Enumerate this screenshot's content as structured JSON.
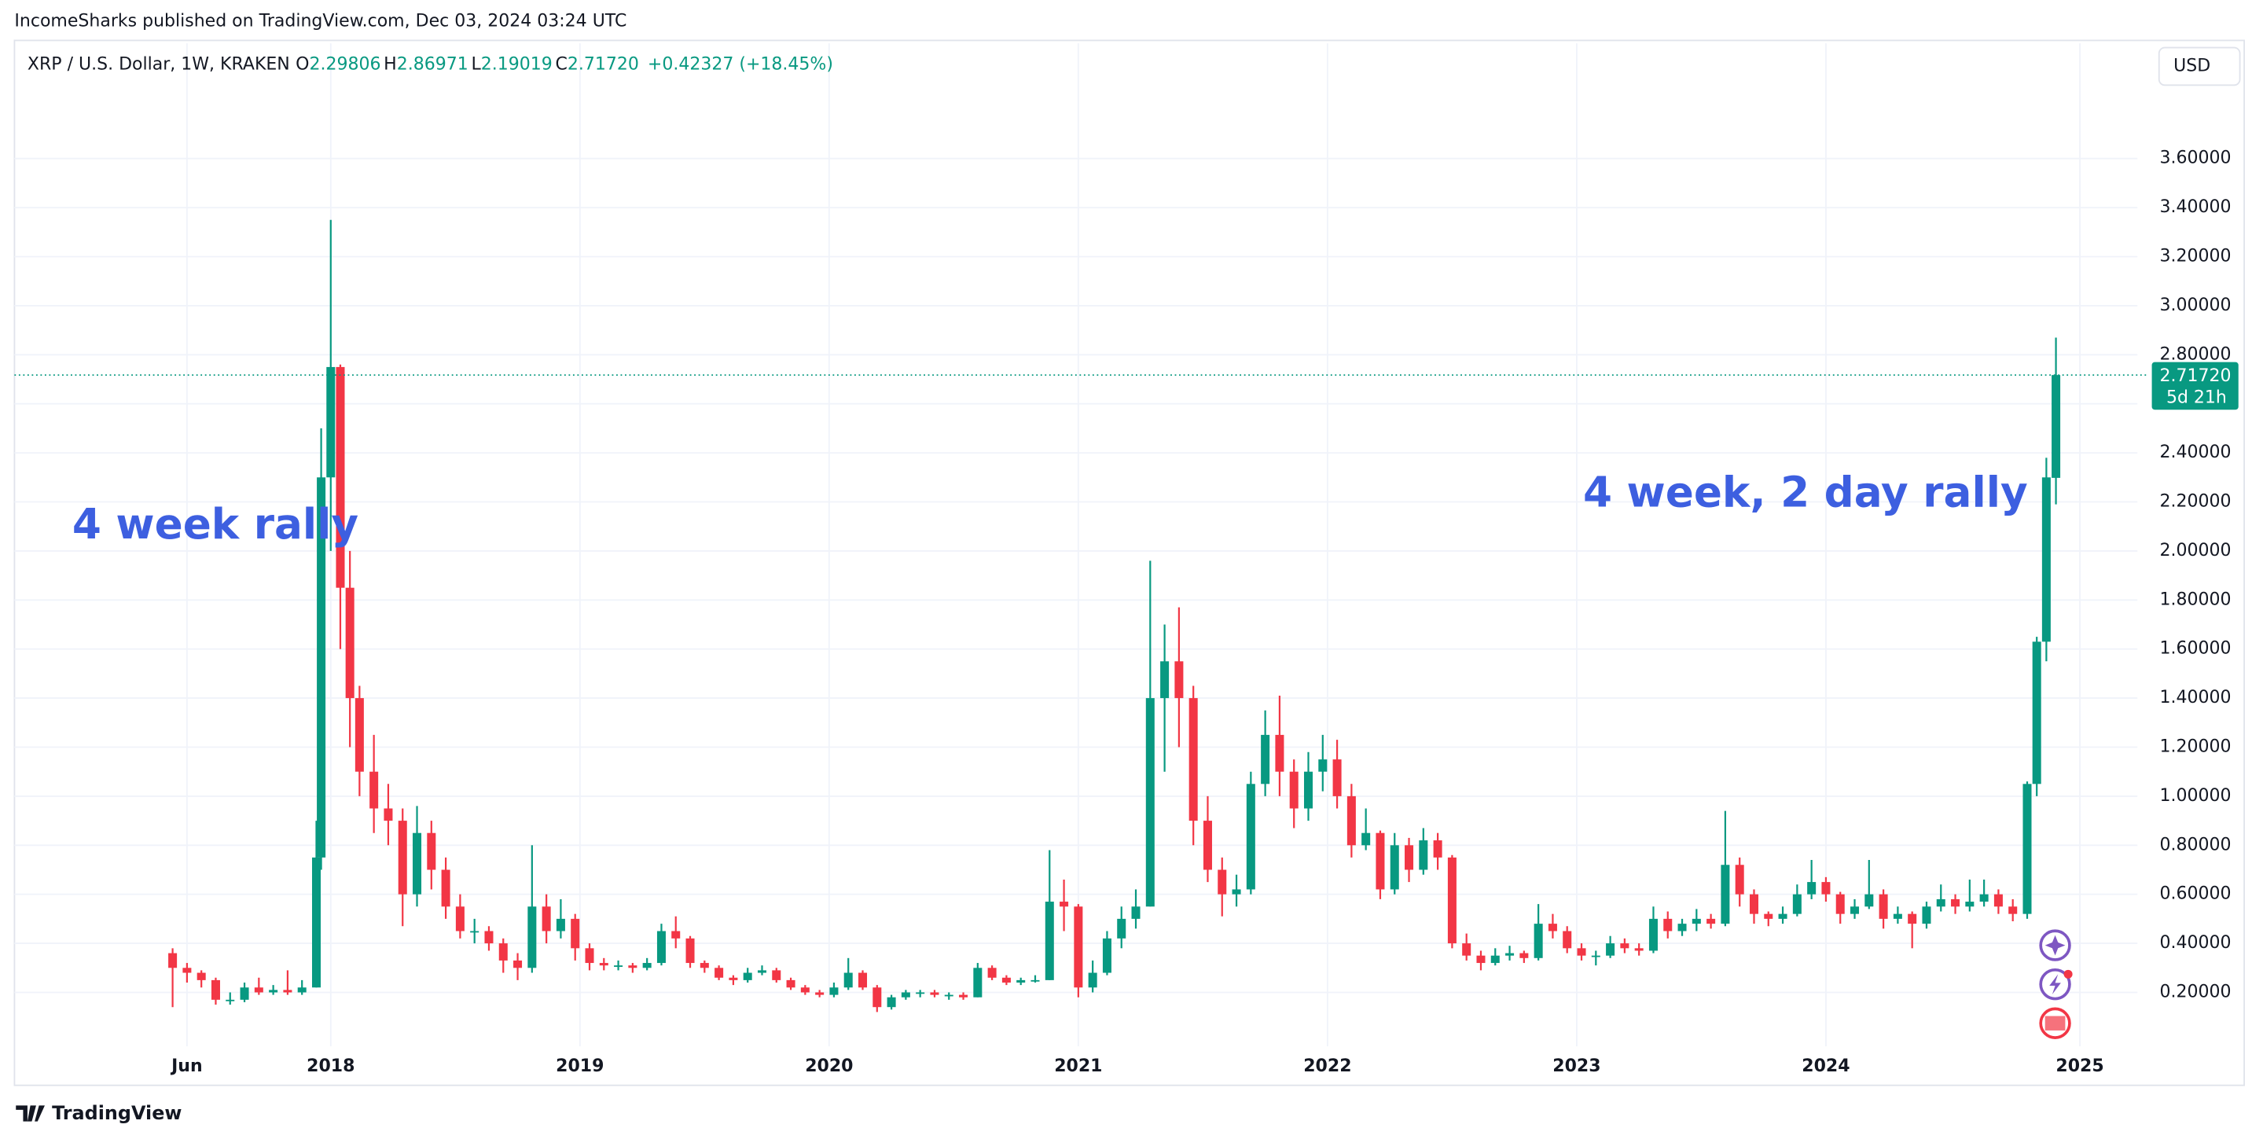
{
  "header": {
    "byline": "IncomeSharks published on TradingView.com, Dec 03, 2024 03:24 UTC",
    "currency": "USD",
    "footer": "TradingView"
  },
  "chart_data": {
    "type": "candlestick",
    "symbol": "XRP / U.S. Dollar, 1W, KRAKEN",
    "ohlc_header": [
      {
        "label": "O",
        "value": "2.29806"
      },
      {
        "label": "H",
        "value": "2.86971"
      },
      {
        "label": "L",
        "value": "2.19019"
      },
      {
        "label": "C",
        "value": "2.71720"
      }
    ],
    "change": "+0.42327 (+18.45%)",
    "price_label": "2.71720",
    "countdown": "5d 21h",
    "annotations": [
      "4 week rally",
      "4 week, 2 day rally"
    ],
    "up_color": "#089981",
    "down_color": "#f23645",
    "grid": true,
    "xlim": [
      -33,
      410
    ],
    "xticks": [
      {
        "value": 3,
        "label": "Jun"
      },
      {
        "value": 33,
        "label": "2018"
      },
      {
        "value": 85,
        "label": "2019"
      },
      {
        "value": 137,
        "label": "2020"
      },
      {
        "value": 189,
        "label": "2021"
      },
      {
        "value": 241,
        "label": "2022"
      },
      {
        "value": 293,
        "label": "2023"
      },
      {
        "value": 345,
        "label": "2024"
      },
      {
        "value": 398,
        "label": "2025"
      }
    ],
    "ylim": [
      -0.02,
      4.07
    ],
    "yticks": [
      {
        "value": 0.2,
        "label": "0.20000"
      },
      {
        "value": 0.4,
        "label": "0.40000"
      },
      {
        "value": 0.6,
        "label": "0.60000"
      },
      {
        "value": 0.8,
        "label": "0.80000"
      },
      {
        "value": 1.0,
        "label": "1.00000"
      },
      {
        "value": 1.2,
        "label": "1.20000"
      },
      {
        "value": 1.4,
        "label": "1.40000"
      },
      {
        "value": 1.6,
        "label": "1.60000"
      },
      {
        "value": 1.8,
        "label": "1.80000"
      },
      {
        "value": 2.0,
        "label": "2.00000"
      },
      {
        "value": 2.2,
        "label": "2.20000"
      },
      {
        "value": 2.4,
        "label": "2.40000"
      },
      {
        "value": 2.6,
        "label": "2.60000"
      },
      {
        "value": 2.8,
        "label": "2.80000"
      },
      {
        "value": 3.0,
        "label": "3.00000"
      },
      {
        "value": 3.2,
        "label": "3.20000"
      },
      {
        "value": 3.4,
        "label": "3.40000"
      },
      {
        "value": 3.6,
        "label": "3.60000"
      }
    ],
    "x": [
      0,
      3,
      6,
      9,
      12,
      15,
      18,
      21,
      24,
      27,
      30,
      31,
      33,
      35,
      37,
      39,
      42,
      45,
      48,
      51,
      54,
      57,
      60,
      63,
      66,
      69,
      72,
      75,
      78,
      81,
      84,
      87,
      90,
      93,
      96,
      99,
      102,
      105,
      108,
      111,
      114,
      117,
      120,
      123,
      126,
      129,
      132,
      135,
      138,
      141,
      144,
      147,
      150,
      153,
      156,
      159,
      162,
      165,
      168,
      171,
      174,
      177,
      180,
      183,
      186,
      189,
      192,
      195,
      198,
      201,
      204,
      207,
      210,
      213,
      216,
      219,
      222,
      225,
      228,
      231,
      234,
      237,
      240,
      243,
      246,
      249,
      252,
      255,
      258,
      261,
      264,
      267,
      270,
      273,
      276,
      279,
      282,
      285,
      288,
      291,
      294,
      297,
      300,
      303,
      306,
      309,
      312,
      315,
      318,
      321,
      324,
      327,
      330,
      333,
      336,
      339,
      342,
      345,
      348,
      351,
      354,
      357,
      360,
      363,
      366,
      369,
      372,
      375,
      378,
      381,
      384,
      387,
      389,
      391,
      393
    ],
    "ohlc": [
      [
        0.36,
        0.38,
        0.14,
        0.3
      ],
      [
        0.3,
        0.32,
        0.24,
        0.28
      ],
      [
        0.28,
        0.29,
        0.22,
        0.25
      ],
      [
        0.25,
        0.26,
        0.15,
        0.17
      ],
      [
        0.17,
        0.2,
        0.15,
        0.17
      ],
      [
        0.17,
        0.24,
        0.16,
        0.22
      ],
      [
        0.22,
        0.26,
        0.19,
        0.2
      ],
      [
        0.2,
        0.23,
        0.19,
        0.21
      ],
      [
        0.21,
        0.29,
        0.19,
        0.2
      ],
      [
        0.2,
        0.25,
        0.19,
        0.22
      ],
      [
        0.22,
        0.9,
        0.22,
        0.75
      ],
      [
        0.75,
        2.5,
        0.7,
        2.3
      ],
      [
        2.3,
        3.35,
        2.0,
        2.75
      ],
      [
        2.75,
        2.76,
        1.6,
        1.85
      ],
      [
        1.85,
        2.0,
        1.2,
        1.4
      ],
      [
        1.4,
        1.45,
        1.0,
        1.1
      ],
      [
        1.1,
        1.25,
        0.85,
        0.95
      ],
      [
        0.95,
        1.05,
        0.8,
        0.9
      ],
      [
        0.9,
        0.95,
        0.47,
        0.6
      ],
      [
        0.6,
        0.96,
        0.55,
        0.85
      ],
      [
        0.85,
        0.9,
        0.62,
        0.7
      ],
      [
        0.7,
        0.75,
        0.5,
        0.55
      ],
      [
        0.55,
        0.6,
        0.42,
        0.45
      ],
      [
        0.45,
        0.5,
        0.4,
        0.45
      ],
      [
        0.45,
        0.47,
        0.37,
        0.4
      ],
      [
        0.4,
        0.42,
        0.28,
        0.33
      ],
      [
        0.33,
        0.36,
        0.25,
        0.3
      ],
      [
        0.3,
        0.8,
        0.28,
        0.55
      ],
      [
        0.55,
        0.6,
        0.4,
        0.45
      ],
      [
        0.45,
        0.58,
        0.42,
        0.5
      ],
      [
        0.5,
        0.52,
        0.33,
        0.38
      ],
      [
        0.38,
        0.4,
        0.29,
        0.32
      ],
      [
        0.32,
        0.34,
        0.29,
        0.31
      ],
      [
        0.31,
        0.33,
        0.29,
        0.31
      ],
      [
        0.31,
        0.32,
        0.28,
        0.3
      ],
      [
        0.3,
        0.34,
        0.29,
        0.32
      ],
      [
        0.32,
        0.48,
        0.31,
        0.45
      ],
      [
        0.45,
        0.51,
        0.38,
        0.42
      ],
      [
        0.42,
        0.43,
        0.3,
        0.32
      ],
      [
        0.32,
        0.33,
        0.28,
        0.3
      ],
      [
        0.3,
        0.31,
        0.25,
        0.26
      ],
      [
        0.26,
        0.27,
        0.23,
        0.25
      ],
      [
        0.25,
        0.3,
        0.24,
        0.28
      ],
      [
        0.28,
        0.31,
        0.27,
        0.29
      ],
      [
        0.29,
        0.3,
        0.24,
        0.25
      ],
      [
        0.25,
        0.26,
        0.21,
        0.22
      ],
      [
        0.22,
        0.23,
        0.19,
        0.2
      ],
      [
        0.2,
        0.21,
        0.18,
        0.19
      ],
      [
        0.19,
        0.24,
        0.18,
        0.22
      ],
      [
        0.22,
        0.34,
        0.21,
        0.28
      ],
      [
        0.28,
        0.29,
        0.21,
        0.22
      ],
      [
        0.22,
        0.23,
        0.12,
        0.14
      ],
      [
        0.14,
        0.19,
        0.13,
        0.18
      ],
      [
        0.18,
        0.21,
        0.17,
        0.2
      ],
      [
        0.2,
        0.21,
        0.18,
        0.2
      ],
      [
        0.2,
        0.21,
        0.18,
        0.19
      ],
      [
        0.19,
        0.2,
        0.17,
        0.19
      ],
      [
        0.19,
        0.2,
        0.17,
        0.18
      ],
      [
        0.18,
        0.32,
        0.18,
        0.3
      ],
      [
        0.3,
        0.31,
        0.25,
        0.26
      ],
      [
        0.26,
        0.27,
        0.23,
        0.24
      ],
      [
        0.24,
        0.26,
        0.23,
        0.25
      ],
      [
        0.25,
        0.27,
        0.24,
        0.25
      ],
      [
        0.25,
        0.78,
        0.25,
        0.57
      ],
      [
        0.57,
        0.66,
        0.45,
        0.55
      ],
      [
        0.55,
        0.56,
        0.18,
        0.22
      ],
      [
        0.22,
        0.33,
        0.2,
        0.28
      ],
      [
        0.28,
        0.45,
        0.27,
        0.42
      ],
      [
        0.42,
        0.55,
        0.38,
        0.5
      ],
      [
        0.5,
        0.62,
        0.46,
        0.55
      ],
      [
        0.55,
        1.96,
        0.55,
        1.4
      ],
      [
        1.4,
        1.7,
        1.1,
        1.55
      ],
      [
        1.55,
        1.77,
        1.2,
        1.4
      ],
      [
        1.4,
        1.45,
        0.8,
        0.9
      ],
      [
        0.9,
        1.0,
        0.65,
        0.7
      ],
      [
        0.7,
        0.75,
        0.51,
        0.6
      ],
      [
        0.6,
        0.68,
        0.55,
        0.62
      ],
      [
        0.62,
        1.1,
        0.6,
        1.05
      ],
      [
        1.05,
        1.35,
        1.0,
        1.25
      ],
      [
        1.25,
        1.41,
        1.0,
        1.1
      ],
      [
        1.1,
        1.15,
        0.87,
        0.95
      ],
      [
        0.95,
        1.18,
        0.9,
        1.1
      ],
      [
        1.1,
        1.25,
        1.02,
        1.15
      ],
      [
        1.15,
        1.23,
        0.95,
        1.0
      ],
      [
        1.0,
        1.05,
        0.75,
        0.8
      ],
      [
        0.8,
        0.95,
        0.78,
        0.85
      ],
      [
        0.85,
        0.86,
        0.58,
        0.62
      ],
      [
        0.62,
        0.85,
        0.6,
        0.8
      ],
      [
        0.8,
        0.83,
        0.65,
        0.7
      ],
      [
        0.7,
        0.87,
        0.68,
        0.82
      ],
      [
        0.82,
        0.85,
        0.7,
        0.75
      ],
      [
        0.75,
        0.76,
        0.38,
        0.4
      ],
      [
        0.4,
        0.44,
        0.33,
        0.35
      ],
      [
        0.35,
        0.37,
        0.29,
        0.32
      ],
      [
        0.32,
        0.38,
        0.31,
        0.35
      ],
      [
        0.35,
        0.39,
        0.33,
        0.36
      ],
      [
        0.36,
        0.37,
        0.32,
        0.34
      ],
      [
        0.34,
        0.56,
        0.33,
        0.48
      ],
      [
        0.48,
        0.52,
        0.42,
        0.45
      ],
      [
        0.45,
        0.47,
        0.36,
        0.38
      ],
      [
        0.38,
        0.4,
        0.33,
        0.35
      ],
      [
        0.35,
        0.37,
        0.31,
        0.35
      ],
      [
        0.35,
        0.43,
        0.34,
        0.4
      ],
      [
        0.4,
        0.42,
        0.36,
        0.38
      ],
      [
        0.38,
        0.4,
        0.35,
        0.37
      ],
      [
        0.37,
        0.55,
        0.36,
        0.5
      ],
      [
        0.5,
        0.53,
        0.42,
        0.45
      ],
      [
        0.45,
        0.5,
        0.43,
        0.48
      ],
      [
        0.48,
        0.54,
        0.45,
        0.5
      ],
      [
        0.5,
        0.52,
        0.46,
        0.48
      ],
      [
        0.48,
        0.94,
        0.47,
        0.72
      ],
      [
        0.72,
        0.75,
        0.55,
        0.6
      ],
      [
        0.6,
        0.62,
        0.48,
        0.52
      ],
      [
        0.52,
        0.53,
        0.47,
        0.5
      ],
      [
        0.5,
        0.55,
        0.48,
        0.52
      ],
      [
        0.52,
        0.64,
        0.51,
        0.6
      ],
      [
        0.6,
        0.74,
        0.58,
        0.65
      ],
      [
        0.65,
        0.67,
        0.57,
        0.6
      ],
      [
        0.6,
        0.61,
        0.48,
        0.52
      ],
      [
        0.52,
        0.58,
        0.5,
        0.55
      ],
      [
        0.55,
        0.74,
        0.54,
        0.6
      ],
      [
        0.6,
        0.62,
        0.46,
        0.5
      ],
      [
        0.5,
        0.55,
        0.48,
        0.52
      ],
      [
        0.52,
        0.53,
        0.38,
        0.48
      ],
      [
        0.48,
        0.57,
        0.46,
        0.55
      ],
      [
        0.55,
        0.64,
        0.53,
        0.58
      ],
      [
        0.58,
        0.6,
        0.52,
        0.55
      ],
      [
        0.55,
        0.66,
        0.53,
        0.57
      ],
      [
        0.57,
        0.66,
        0.55,
        0.6
      ],
      [
        0.6,
        0.62,
        0.52,
        0.55
      ],
      [
        0.55,
        0.58,
        0.49,
        0.52
      ],
      [
        0.52,
        1.06,
        0.5,
        1.05
      ],
      [
        1.05,
        1.65,
        1.0,
        1.63
      ],
      [
        1.63,
        2.38,
        1.55,
        2.3
      ],
      [
        2.29806,
        2.86971,
        2.19019,
        2.7172
      ]
    ]
  }
}
